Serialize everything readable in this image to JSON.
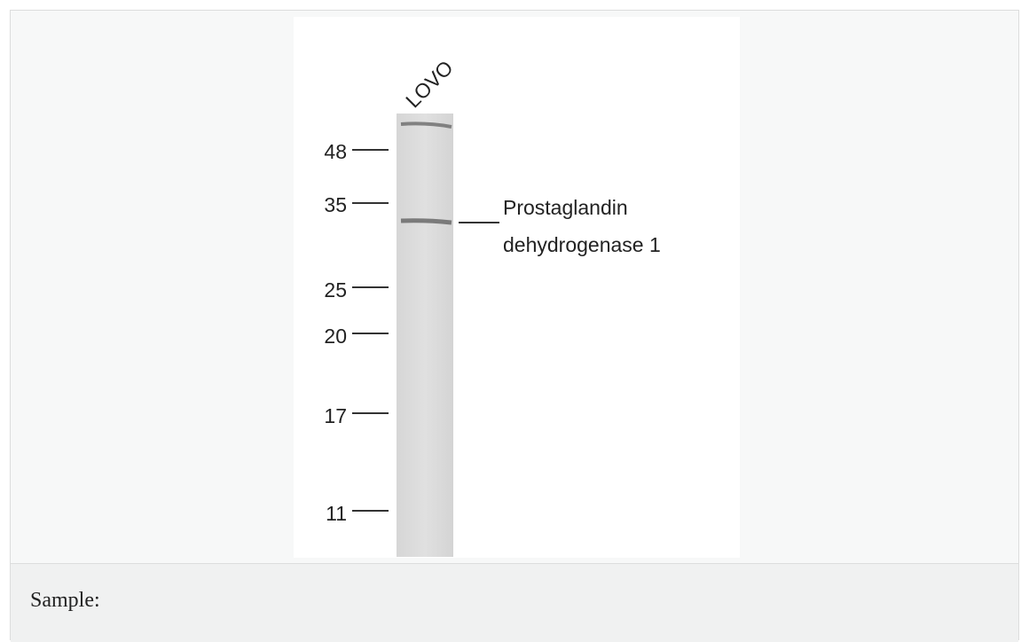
{
  "blot": {
    "lane_label": "LOVO",
    "markers": [
      "48",
      "35",
      "25",
      "20",
      "17",
      "11"
    ],
    "band_label": [
      "Prostaglandin",
      "dehydrogenase 1"
    ]
  },
  "caption": "Sample:"
}
